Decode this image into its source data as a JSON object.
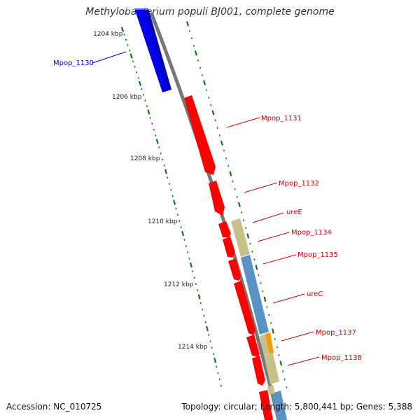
{
  "title": "Methylobacterium populi BJ001, complete genome",
  "footer": {
    "accession": "Accession: NC_010725",
    "stats": "Topology: circular; Length: 5,800,441 bp; Genes: 5,388"
  },
  "colors": {
    "backbone": "#888888",
    "highlight_gene": "#0000ee",
    "gene_cds": "#ff0000",
    "tick": "#117711",
    "label_default": "#cc0000",
    "label_highlight": "#0000cc",
    "feature_khaki": "#c8c08a",
    "feature_steelblue": "#5a92c4",
    "feature_orange": "#ff9a00"
  },
  "scale_labels": [
    "1204 kbp",
    "1206 kbp",
    "1208 kbp",
    "1210 kbp",
    "1212 kbp",
    "1214 kbp"
  ],
  "genes": [
    {
      "label": "Mpop_1130",
      "color": "highlight_gene"
    },
    {
      "label": "Mpop_1131",
      "color": "gene_cds"
    },
    {
      "label": "Mpop_1132",
      "color": "gene_cds"
    },
    {
      "label": "ureE",
      "color": "gene_cds"
    },
    {
      "label": "Mpop_1134",
      "color": "gene_cds"
    },
    {
      "label": "Mpop_1135",
      "color": "gene_cds"
    },
    {
      "label": "ureC",
      "color": "gene_cds"
    },
    {
      "label": "Mpop_1137",
      "color": "gene_cds"
    },
    {
      "label": "Mpop_1138",
      "color": "gene_cds"
    }
  ]
}
